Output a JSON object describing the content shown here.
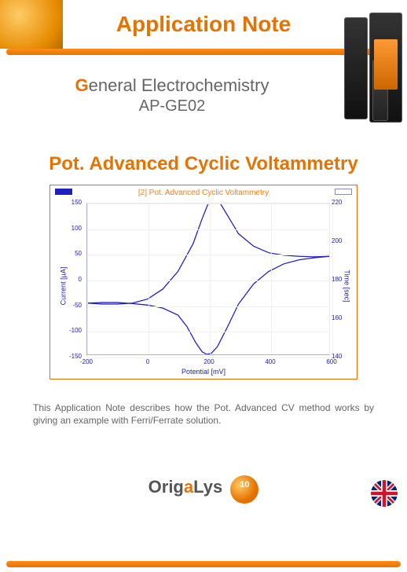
{
  "banner": {
    "title_a": "A",
    "title_rest1": "pplication ",
    "title_n": "N",
    "title_rest2": "ote"
  },
  "subtitle": {
    "first_letter": "G",
    "line1_rest": "eneral Electrochemistry",
    "line2": "AP-GE02"
  },
  "main_title": "Pot. Advanced Cyclic Voltammetry",
  "chart": {
    "title": "[2] Pot. Advanced Cyclic Voltammetry",
    "xlabel": "Potential [mV]",
    "ylabel_left": "Current [µA]",
    "ylabel_right": "Time [sec]",
    "xlim": [
      -200,
      600
    ],
    "ylim_left": [
      -150,
      150
    ],
    "ylim_right": [
      140,
      220
    ],
    "xtick_vals": [
      -200,
      0,
      200,
      400,
      600
    ],
    "ytick_left_vals": [
      -150,
      -100,
      -50,
      0,
      50,
      100,
      150
    ],
    "ytick_right_vals": [
      140,
      160,
      180,
      200,
      220
    ],
    "line_color": "#2020c0",
    "grid_color": "#f0f0f4",
    "frame_color": "#e67300",
    "cv_path_forward": [
      [
        -200,
        -48
      ],
      [
        -150,
        -50
      ],
      [
        -100,
        -50
      ],
      [
        -50,
        -48
      ],
      [
        0,
        -40
      ],
      [
        50,
        -20
      ],
      [
        100,
        15
      ],
      [
        150,
        70
      ],
      [
        180,
        120
      ],
      [
        200,
        150
      ],
      [
        220,
        158
      ],
      [
        240,
        150
      ],
      [
        270,
        120
      ],
      [
        300,
        90
      ],
      [
        350,
        65
      ],
      [
        400,
        52
      ],
      [
        450,
        47
      ],
      [
        500,
        45
      ],
      [
        550,
        44
      ],
      [
        600,
        45
      ]
    ],
    "cv_path_reverse": [
      [
        600,
        45
      ],
      [
        550,
        42
      ],
      [
        500,
        38
      ],
      [
        450,
        30
      ],
      [
        400,
        15
      ],
      [
        350,
        -10
      ],
      [
        300,
        -50
      ],
      [
        260,
        -100
      ],
      [
        230,
        -135
      ],
      [
        210,
        -148
      ],
      [
        195,
        -150
      ],
      [
        180,
        -145
      ],
      [
        160,
        -128
      ],
      [
        130,
        -95
      ],
      [
        100,
        -72
      ],
      [
        50,
        -58
      ],
      [
        0,
        -52
      ],
      [
        -50,
        -49
      ],
      [
        -100,
        -47
      ],
      [
        -150,
        -47
      ],
      [
        -200,
        -48
      ]
    ]
  },
  "description": "This Application Note describes how the Pot. Advanced CV method works by giving an example with Ferri/Ferrate solution.",
  "footer": {
    "logo_pre": "Orig",
    "logo_accent": "a",
    "logo_post": "Lys"
  },
  "colors": {
    "accent": "#e67300",
    "text_gray": "#666666",
    "chart_blue": "#2020c0"
  }
}
